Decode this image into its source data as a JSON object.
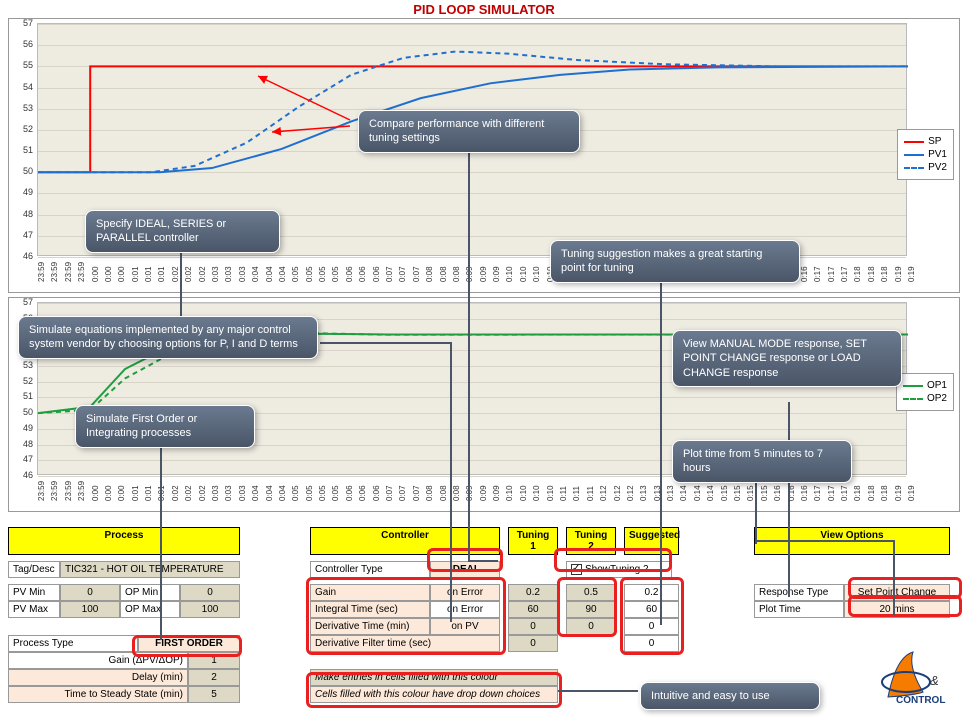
{
  "title": "PID LOOP SIMULATOR",
  "chart1": {
    "ylim": [
      46,
      57
    ],
    "ytick_step": 1,
    "bg": "#eeece1",
    "grid": "#d8d4c8",
    "series": {
      "SP": {
        "color": "#ff0000",
        "dash": "none",
        "pts": [
          [
            0,
            50
          ],
          [
            0.06,
            50
          ],
          [
            0.06,
            55
          ],
          [
            1,
            55
          ]
        ]
      },
      "PV1": {
        "color": "#1f6fd1",
        "dash": "none",
        "pts": [
          [
            0,
            50
          ],
          [
            0.14,
            50
          ],
          [
            0.2,
            50.2
          ],
          [
            0.28,
            51.1
          ],
          [
            0.36,
            52.4
          ],
          [
            0.44,
            53.5
          ],
          [
            0.52,
            54.2
          ],
          [
            0.6,
            54.6
          ],
          [
            0.68,
            54.85
          ],
          [
            0.78,
            54.95
          ],
          [
            1,
            55
          ]
        ]
      },
      "PV2": {
        "color": "#1f6fd1",
        "dash": "5,4",
        "pts": [
          [
            0,
            50
          ],
          [
            0.13,
            50
          ],
          [
            0.18,
            50.3
          ],
          [
            0.24,
            51.4
          ],
          [
            0.3,
            53.1
          ],
          [
            0.36,
            54.6
          ],
          [
            0.42,
            55.4
          ],
          [
            0.48,
            55.7
          ],
          [
            0.54,
            55.6
          ],
          [
            0.62,
            55.3
          ],
          [
            0.72,
            55.1
          ],
          [
            0.85,
            55
          ],
          [
            1,
            55
          ]
        ]
      }
    },
    "legend": [
      {
        "label": "SP",
        "color": "#ff0000",
        "dash": false
      },
      {
        "label": "PV1",
        "color": "#1f6fd1",
        "dash": false
      },
      {
        "label": "PV2",
        "color": "#1f6fd1",
        "dash": true
      }
    ]
  },
  "chart2": {
    "ylim": [
      46,
      57
    ],
    "ytick_step": 1,
    "bg": "#eeece1",
    "grid": "#d8d4c8",
    "series": {
      "OP1": {
        "color": "#1f9e3f",
        "dash": "none",
        "pts": [
          [
            0,
            50
          ],
          [
            0.06,
            50.4
          ],
          [
            0.1,
            52.8
          ],
          [
            0.15,
            54.2
          ],
          [
            0.22,
            54.9
          ],
          [
            0.3,
            55.05
          ],
          [
            0.4,
            55.0
          ],
          [
            1,
            55
          ]
        ]
      },
      "OP2": {
        "color": "#1f9e3f",
        "dash": "5,4",
        "pts": [
          [
            0,
            50
          ],
          [
            0.06,
            50.2
          ],
          [
            0.1,
            52.2
          ],
          [
            0.16,
            54.0
          ],
          [
            0.22,
            54.8
          ],
          [
            0.3,
            55.1
          ],
          [
            0.4,
            54.98
          ],
          [
            1,
            55
          ]
        ]
      }
    },
    "legend": [
      {
        "label": "OP1",
        "color": "#1f9e3f",
        "dash": false
      },
      {
        "label": "OP2",
        "color": "#1f9e3f",
        "dash": true
      }
    ]
  },
  "xticks": [
    "23:59",
    "23:59",
    "23:59",
    "23:59",
    "0:00",
    "0:00",
    "0:00",
    "0:01",
    "0:01",
    "0:01",
    "0:02",
    "0:02",
    "0:02",
    "0:03",
    "0:03",
    "0:03",
    "0:04",
    "0:04",
    "0:04",
    "0:05",
    "0:05",
    "0:05",
    "0:05",
    "0:06",
    "0:06",
    "0:06",
    "0:07",
    "0:07",
    "0:07",
    "0:08",
    "0:08",
    "0:08",
    "0:09",
    "0:09",
    "0:09",
    "0:10",
    "0:10",
    "0:10",
    "0:10",
    "0:11",
    "0:11",
    "0:11",
    "0:12",
    "0:12",
    "0:12",
    "0:13",
    "0:13",
    "0:13",
    "0:14",
    "0:14",
    "0:14",
    "0:15",
    "0:15",
    "0:15",
    "0:15",
    "0:16",
    "0:16",
    "0:16",
    "0:17",
    "0:17",
    "0:17",
    "0:18",
    "0:18",
    "0:18",
    "0:19",
    "0:19"
  ],
  "callouts": {
    "c1": "Compare performance with different tuning settings",
    "c2": "Specify IDEAL, SERIES or PARALLEL controller",
    "c3": "Tuning suggestion makes a great starting point for tuning",
    "c4": "Simulate equations implemented by any major control system vendor by choosing options for P, I and D terms",
    "c5": "View MANUAL MODE response, SET POINT CHANGE response or LOAD CHANGE response",
    "c6": "Simulate  First Order or Integrating processes",
    "c7": "Plot time from 5 minutes to 7 hours",
    "c8": "Intuitive and easy to use"
  },
  "headers": {
    "process": "Process",
    "controller": "Controller",
    "t1": "Tuning 1",
    "t2": "Tuning 2",
    "sg": "Suggested",
    "vo": "View Options"
  },
  "process": {
    "tag_lbl": "Tag/Desc",
    "tag_val": "TIC321 - HOT OIL TEMPERATURE",
    "pvmin_lbl": "PV Min",
    "pvmin_val": "0",
    "opmin_lbl": "OP Min",
    "opmin_val": "0",
    "pvmax_lbl": "PV Max",
    "pvmax_val": "100",
    "opmax_lbl": "OP Max",
    "opmax_val": "100",
    "ptype_lbl": "Process Type",
    "ptype_val": "FIRST ORDER",
    "gain_lbl": "Gain (ΔPV/ΔOP)",
    "gain_val": "1",
    "delay_lbl": "Delay (min)",
    "delay_val": "2",
    "tss_lbl": "Time to Steady State (min)",
    "tss_val": "5"
  },
  "controller": {
    "ctype_lbl": "Controller Type",
    "ctype_val": "IDEAL",
    "show_t2": "ShowTuning 2",
    "gain_lbl": "Gain",
    "gain_opt": "on Error",
    "gain_t1": "0.2",
    "gain_t2": "0.5",
    "gain_sg": "0.2",
    "it_lbl": "Integral Time (sec)",
    "it_opt": "on Error",
    "it_t1": "60",
    "it_t2": "90",
    "it_sg": "60",
    "dt_lbl": "Derivative Time (min)",
    "dt_opt": "on PV",
    "dt_t1": "0",
    "dt_t2": "0",
    "dt_sg": "0",
    "df_lbl": "Derivative Filter time (sec)",
    "df_t1": "0",
    "df_sg": "0",
    "note1": "Make entries in cells filled with this colour",
    "note2": "Cells filled with this colour have drop down choices"
  },
  "view": {
    "rt_lbl": "Response Type",
    "rt_val": "Set Point Change",
    "pt_lbl": "Plot Time",
    "pt_val": "20 mins"
  },
  "logo": {
    "brand": "CONTROL",
    "amp": "&"
  }
}
